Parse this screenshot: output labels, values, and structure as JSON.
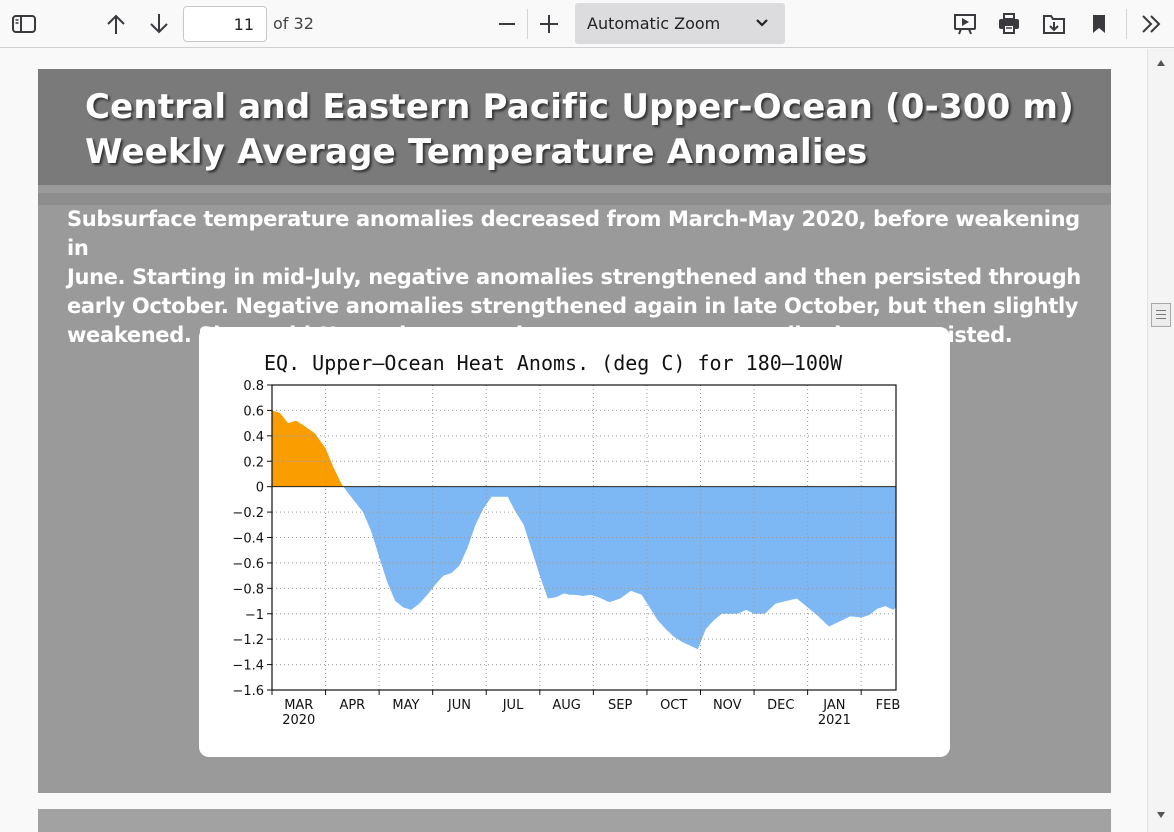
{
  "toolbar": {
    "page_number": "11",
    "page_count": "of 32",
    "zoom_label": "Automatic Zoom",
    "icons": [
      "sidebar-toggle-icon",
      "arrow-up-icon",
      "arrow-down-icon",
      "zoom-out-icon",
      "zoom-in-icon",
      "chevron-down-icon",
      "presentation-icon",
      "print-icon",
      "download-icon",
      "bookmark-icon",
      "double-chevron-right-icon"
    ]
  },
  "slide": {
    "title_line1": "Central and Eastern Pacific Upper-Ocean (0-300 m)",
    "title_line2": "Weekly Average Temperature Anomalies",
    "body_lines": [
      "Subsurface temperature anomalies decreased from March-May 2020, before weakening in",
      "June. Starting in mid-July, negative anomalies strengthened and then persisted through",
      "early October.  Negative anomalies strengthened again in late October, but then slightly",
      "weakened.  Since mid-November, negative temperature anomalies have persisted."
    ]
  },
  "colors": {
    "positive": "#fa9d00",
    "negative": "#7db8f4",
    "slide_bg": "#9a9a9a",
    "title_band": "#7a7a7a"
  },
  "chart_data": {
    "type": "area",
    "title": "EQ. Upper–Ocean Heat Anoms. (deg C) for 180–100W",
    "xlabel": "",
    "ylabel": "",
    "ylim": [
      -1.6,
      0.8
    ],
    "yticks": [
      "0.8",
      "0.6",
      "0.4",
      "0.2",
      "0",
      "−0.2",
      "−0.4",
      "−0.6",
      "−0.8",
      "−1",
      "−1.2",
      "−1.4",
      "−1.6"
    ],
    "ytick_values": [
      0.8,
      0.6,
      0.4,
      0.2,
      0,
      -0.2,
      -0.4,
      -0.6,
      -0.8,
      -1,
      -1.2,
      -1.4,
      -1.6
    ],
    "xticks": [
      {
        "label": "MAR",
        "sub": "2020",
        "x": 0.5
      },
      {
        "label": "APR",
        "sub": "",
        "x": 1.5
      },
      {
        "label": "MAY",
        "sub": "",
        "x": 2.5
      },
      {
        "label": "JUN",
        "sub": "",
        "x": 3.5
      },
      {
        "label": "JUL",
        "sub": "",
        "x": 4.5
      },
      {
        "label": "AUG",
        "sub": "",
        "x": 5.5
      },
      {
        "label": "SEP",
        "sub": "",
        "x": 6.5
      },
      {
        "label": "OCT",
        "sub": "",
        "x": 7.5
      },
      {
        "label": "NOV",
        "sub": "",
        "x": 8.5
      },
      {
        "label": "DEC",
        "sub": "",
        "x": 9.5
      },
      {
        "label": "JAN",
        "sub": "2021",
        "x": 10.5
      },
      {
        "label": "FEB",
        "sub": "",
        "x": 11.5
      }
    ],
    "xlim": [
      0,
      11.65
    ],
    "grid": true,
    "series": [
      {
        "x": [
          0.0,
          0.15,
          0.3,
          0.45,
          0.6,
          0.8,
          1.0,
          1.15,
          1.3,
          1.42,
          1.55,
          1.7,
          1.85,
          2.0,
          2.15,
          2.3,
          2.45,
          2.6,
          2.75,
          2.9,
          3.05,
          3.2,
          3.35,
          3.5,
          3.65,
          3.8,
          3.95,
          4.1,
          4.25,
          4.4,
          4.55,
          4.7,
          4.85,
          5.0,
          5.15,
          5.3,
          5.45,
          5.55,
          5.65,
          5.8,
          5.95,
          6.1,
          6.3,
          6.5,
          6.7,
          6.9,
          7.05,
          7.2,
          7.35,
          7.5,
          7.65,
          7.8,
          7.95,
          8.1,
          8.25,
          8.4,
          8.55,
          8.7,
          8.85,
          9.0,
          9.2,
          9.4,
          9.6,
          9.8,
          10.0,
          10.2,
          10.4,
          10.6,
          10.8,
          11.0,
          11.15,
          11.3,
          11.45,
          11.6,
          11.65
        ],
        "y": [
          0.6,
          0.58,
          0.5,
          0.52,
          0.48,
          0.42,
          0.3,
          0.15,
          0.02,
          -0.05,
          -0.12,
          -0.2,
          -0.35,
          -0.55,
          -0.75,
          -0.9,
          -0.95,
          -0.97,
          -0.92,
          -0.85,
          -0.77,
          -0.7,
          -0.68,
          -0.62,
          -0.48,
          -0.3,
          -0.17,
          -0.08,
          -0.08,
          -0.08,
          -0.2,
          -0.3,
          -0.5,
          -0.7,
          -0.88,
          -0.87,
          -0.84,
          -0.85,
          -0.85,
          -0.86,
          -0.85,
          -0.87,
          -0.91,
          -0.88,
          -0.82,
          -0.85,
          -0.95,
          -1.05,
          -1.12,
          -1.18,
          -1.22,
          -1.25,
          -1.28,
          -1.12,
          -1.05,
          -1.0,
          -1.0,
          -1.0,
          -0.97,
          -1.0,
          -1.0,
          -0.92,
          -0.9,
          -0.88,
          -0.95,
          -1.02,
          -1.1,
          -1.06,
          -1.02,
          -1.03,
          -1.01,
          -0.96,
          -0.94,
          -0.97,
          -0.95
        ]
      }
    ]
  }
}
